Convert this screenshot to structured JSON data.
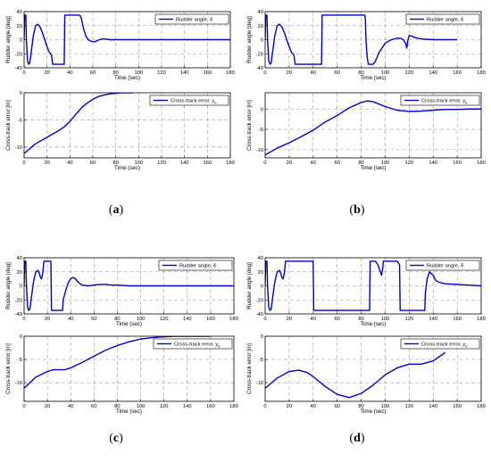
{
  "captions": [
    "a",
    "b",
    "c",
    "d"
  ],
  "colors": {
    "line": "#0000cc",
    "grid": "#9a9a9a",
    "axis": "#000000",
    "text": "#000000"
  },
  "chart_data": [
    {
      "panel": "a",
      "position": "top",
      "type": "line",
      "xlabel": "Time (sec)",
      "ylabel": "Rudder angle [deg]",
      "xlim": [
        0,
        180
      ],
      "ylim": [
        -40,
        40
      ],
      "xticks": [
        0,
        20,
        40,
        60,
        80,
        100,
        120,
        140,
        160,
        180
      ],
      "yticks": [
        -40,
        -20,
        0,
        20,
        40
      ],
      "grid": true,
      "legend_position": "top-right",
      "series": [
        {
          "name": "Rudder angle, δ",
          "x": [
            0,
            0.5,
            1.5,
            2,
            3,
            4,
            5,
            6,
            8,
            10,
            12,
            14,
            16,
            18,
            20,
            22,
            24,
            24.5,
            25,
            30,
            34,
            35,
            35.5,
            40,
            45,
            48,
            49,
            50,
            52,
            54,
            56,
            58,
            60,
            62,
            64,
            66,
            68,
            70,
            75,
            80,
            90,
            100,
            120,
            140,
            160,
            180
          ],
          "y": [
            0,
            35,
            35,
            0,
            -30,
            -35,
            -33,
            -20,
            5,
            20,
            22,
            18,
            10,
            0,
            -10,
            -18,
            -22,
            -30,
            -35,
            -35,
            -35,
            -35,
            35,
            35,
            35,
            35,
            34,
            30,
            15,
            5,
            0,
            -2,
            -3,
            -3,
            -1,
            0,
            1,
            1,
            0,
            0,
            0,
            0,
            0,
            0,
            0,
            0
          ]
        }
      ]
    },
    {
      "panel": "a",
      "position": "bottom",
      "type": "line",
      "xlabel": "Time (sec)",
      "ylabel": "Cross-track error [m]",
      "xlim": [
        0,
        180
      ],
      "ylim": [
        -12,
        0
      ],
      "xticks": [
        0,
        20,
        40,
        60,
        80,
        100,
        120,
        140,
        160,
        180
      ],
      "yticks": [
        -10,
        -5,
        0
      ],
      "grid": true,
      "legend_position": "top-right",
      "series": [
        {
          "name": "Cross-track error, y",
          "x": [
            0,
            10,
            20,
            30,
            35,
            40,
            45,
            50,
            55,
            60,
            65,
            70,
            75,
            80,
            85,
            90,
            95
          ],
          "y": [
            -11.2,
            -9.4,
            -8.2,
            -7,
            -6.3,
            -5.3,
            -4,
            -2.8,
            -1.9,
            -1.2,
            -0.7,
            -0.4,
            -0.2,
            -0.1,
            0,
            0,
            0
          ]
        }
      ]
    },
    {
      "panel": "b",
      "position": "top",
      "type": "line",
      "xlabel": "Time (sec)",
      "ylabel": "Rudder angle [deg]",
      "xlim": [
        0,
        180
      ],
      "ylim": [
        -40,
        40
      ],
      "xticks": [
        0,
        20,
        40,
        60,
        80,
        100,
        120,
        140,
        160,
        180
      ],
      "yticks": [
        -40,
        -20,
        0,
        20,
        40
      ],
      "grid": true,
      "legend_position": "top-right",
      "series": [
        {
          "name": "Rudder angle, δ",
          "x": [
            0,
            0.5,
            1.5,
            2,
            3,
            4,
            5,
            6,
            8,
            10,
            12,
            14,
            16,
            18,
            20,
            22,
            24,
            25,
            30,
            40,
            45,
            47,
            47.5,
            55,
            65,
            75,
            83,
            83.5,
            84,
            85,
            86,
            86.5,
            90,
            92,
            95,
            100,
            105,
            110,
            113,
            115,
            117,
            118,
            119,
            120,
            122,
            125,
            130,
            140,
            150,
            160
          ],
          "y": [
            0,
            35,
            35,
            0,
            -30,
            -35,
            -33,
            -20,
            5,
            20,
            22,
            18,
            10,
            0,
            -10,
            -18,
            -22,
            -35,
            -35,
            -35,
            -35,
            -35,
            35,
            35,
            35,
            35,
            35,
            30,
            0,
            -25,
            -35,
            -35,
            -35,
            -30,
            -18,
            -5,
            0,
            2,
            2,
            0,
            -5,
            -12,
            0,
            6,
            5,
            3,
            1,
            0,
            0,
            0
          ]
        }
      ]
    },
    {
      "panel": "b",
      "position": "bottom",
      "type": "line",
      "xlabel": "Time (sec)",
      "ylabel": "Cross-track error [m]",
      "xlim": [
        0,
        180
      ],
      "ylim": [
        -12,
        4
      ],
      "xticks": [
        0,
        20,
        40,
        60,
        80,
        100,
        120,
        140,
        160,
        180
      ],
      "yticks": [
        -10,
        -5,
        0
      ],
      "grid": true,
      "legend_position": "top-right",
      "series": [
        {
          "name": "Cross-track error, y",
          "x": [
            0,
            10,
            20,
            30,
            40,
            50,
            60,
            70,
            80,
            85,
            90,
            100,
            110,
            120,
            130,
            140,
            150,
            160,
            170,
            180
          ],
          "y": [
            -11.3,
            -9.6,
            -8.3,
            -6.8,
            -5.2,
            -3.2,
            -1.6,
            0.3,
            1.6,
            2,
            1.8,
            0.6,
            -0.3,
            -0.6,
            -0.5,
            -0.3,
            -0.1,
            -0.1,
            0,
            0
          ]
        }
      ]
    },
    {
      "panel": "c",
      "position": "top",
      "type": "line",
      "xlabel": "Time (sec)",
      "ylabel": "Rudder angle [deg]",
      "xlim": [
        0,
        180
      ],
      "ylim": [
        -40,
        40
      ],
      "xticks": [
        0,
        20,
        40,
        60,
        80,
        100,
        120,
        140,
        160,
        180
      ],
      "yticks": [
        -40,
        -20,
        0,
        20,
        40
      ],
      "grid": true,
      "legend_position": "top-right",
      "series": [
        {
          "name": "Rudder angle, δ",
          "x": [
            0,
            0.5,
            1.5,
            2,
            3,
            4,
            5,
            6,
            8,
            10,
            12,
            13,
            14,
            15,
            16,
            17,
            17.5,
            22,
            23,
            23.5,
            32,
            33,
            33.5,
            36,
            38,
            40,
            42,
            44,
            46,
            48,
            50,
            55,
            60,
            65,
            70,
            75,
            80,
            90,
            100,
            120,
            140,
            160,
            180
          ],
          "y": [
            0,
            35,
            35,
            0,
            -30,
            -35,
            -33,
            -20,
            5,
            20,
            22,
            18,
            12,
            10,
            18,
            35,
            35,
            35,
            35,
            -35,
            -35,
            -35,
            -20,
            -5,
            5,
            10,
            12,
            10,
            6,
            3,
            1,
            0,
            1,
            2,
            2,
            1,
            1,
            0,
            0,
            0,
            0,
            0,
            0
          ]
        }
      ]
    },
    {
      "panel": "c",
      "position": "bottom",
      "type": "line",
      "xlabel": "Time (sec)",
      "ylabel": "Cross-track error [m]",
      "xlim": [
        0,
        180
      ],
      "ylim": [
        -14,
        0
      ],
      "xticks": [
        0,
        20,
        40,
        60,
        80,
        100,
        120,
        140,
        160,
        180
      ],
      "yticks": [
        -10,
        -5,
        0
      ],
      "grid": true,
      "legend_position": "top-right",
      "series": [
        {
          "name": "Cross-track error, y",
          "x": [
            0,
            10,
            20,
            25,
            30,
            35,
            40,
            50,
            60,
            70,
            80,
            90,
            100,
            110,
            120,
            130,
            140,
            150,
            160
          ],
          "y": [
            -11.2,
            -8.8,
            -7.6,
            -7.2,
            -7.2,
            -7.2,
            -6.8,
            -5.6,
            -4.3,
            -3,
            -2,
            -1.2,
            -0.6,
            -0.3,
            -0.1,
            0,
            0,
            0,
            0
          ]
        }
      ]
    },
    {
      "panel": "d",
      "position": "top",
      "type": "line",
      "xlabel": "Time (sec)",
      "ylabel": "Rudder angle [deg]",
      "xlim": [
        0,
        180
      ],
      "ylim": [
        -40,
        40
      ],
      "xticks": [
        0,
        20,
        40,
        60,
        80,
        100,
        120,
        140,
        160,
        180
      ],
      "yticks": [
        -40,
        -20,
        0,
        20,
        40
      ],
      "grid": true,
      "legend_position": "top-right",
      "series": [
        {
          "name": "Rudder angle, δ",
          "x": [
            0,
            0.5,
            1.5,
            2,
            3,
            4,
            5,
            6,
            8,
            10,
            12,
            13,
            14,
            15,
            16,
            17,
            17.5,
            30,
            40,
            40.5,
            60,
            87,
            87.5,
            92,
            94,
            96,
            97,
            98,
            98.5,
            105,
            110,
            112,
            112.5,
            120,
            130,
            133,
            133.5,
            135,
            137,
            140,
            142,
            145,
            150,
            160,
            170,
            180
          ],
          "y": [
            0,
            35,
            35,
            0,
            -30,
            -35,
            -33,
            -20,
            5,
            20,
            22,
            18,
            12,
            10,
            18,
            35,
            35,
            35,
            35,
            -35,
            -35,
            -35,
            35,
            35,
            30,
            20,
            15,
            25,
            35,
            35,
            35,
            30,
            -35,
            -35,
            -35,
            -35,
            -10,
            10,
            20,
            15,
            8,
            5,
            3,
            2,
            1,
            0
          ]
        }
      ]
    },
    {
      "panel": "d",
      "position": "bottom",
      "type": "line",
      "xlabel": "Time (sec)",
      "ylabel": "Cross-track error [m]",
      "xlim": [
        0,
        180
      ],
      "ylim": [
        -14,
        0
      ],
      "xticks": [
        0,
        20,
        40,
        60,
        80,
        100,
        120,
        140,
        160,
        180
      ],
      "yticks": [
        -10,
        -5,
        0
      ],
      "grid": true,
      "legend_position": "top-right",
      "series": [
        {
          "name": "Cross-track error, y",
          "x": [
            0,
            10,
            20,
            28,
            35,
            40,
            50,
            60,
            70,
            80,
            90,
            100,
            110,
            120,
            130,
            140,
            150
          ],
          "y": [
            -11.2,
            -9,
            -7.6,
            -7.3,
            -7.8,
            -8.7,
            -10.8,
            -12.5,
            -13.2,
            -12.3,
            -10.5,
            -8.3,
            -6.8,
            -6,
            -6,
            -5.3,
            -3.5
          ]
        }
      ]
    }
  ]
}
